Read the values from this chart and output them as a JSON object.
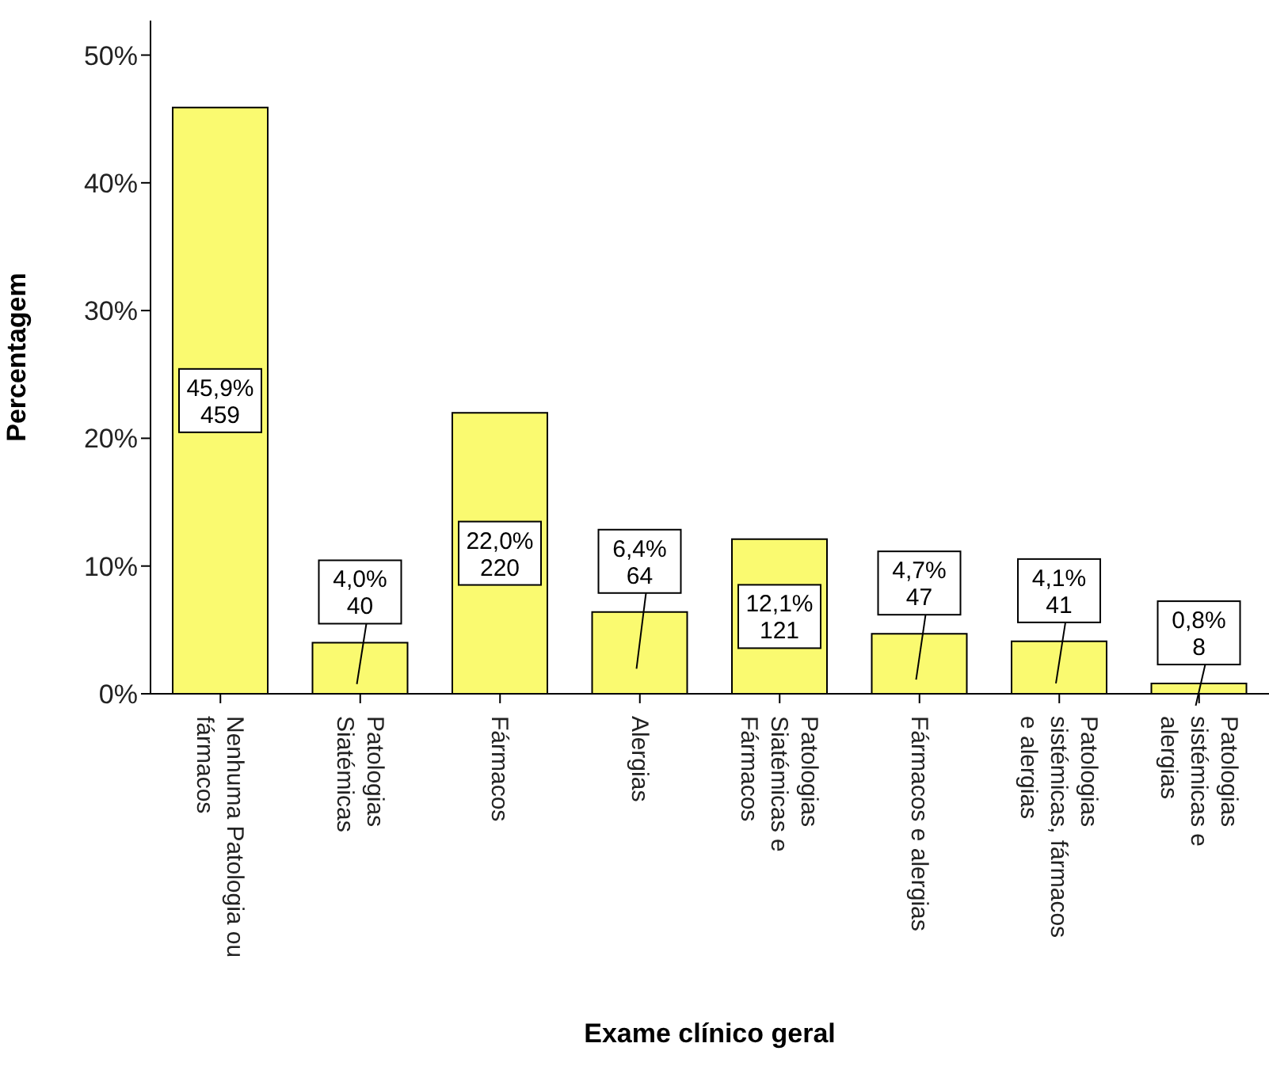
{
  "chart_data": {
    "type": "bar",
    "xlabel": "Exame clínico geral",
    "ylabel": "Percentagem",
    "categories": [
      "Nenhuma Patologia ou fármacos",
      "Patologias Siatémicas",
      "Fármacos",
      "Alergias",
      "Patologias Siatémicas e Fármacos",
      "Fármacos e alergias",
      "Patologias sistémicas, fármacos e alergias",
      "Patologias sistémicas e alergias"
    ],
    "values": [
      45.9,
      4.0,
      22.0,
      6.4,
      12.1,
      4.7,
      4.1,
      0.8
    ],
    "value_labels": [
      "45,9%\n459",
      "4,0%\n40",
      "22,0%\n220",
      "6,4%\n64",
      "12,1%\n121",
      "4,7%\n47",
      "4,1%\n41",
      "0,8%\n8"
    ],
    "color": "#fafa70",
    "ylim": [
      0,
      52.7
    ],
    "yticks": [
      {
        "value": 0,
        "label": "0%"
      },
      {
        "value": 10,
        "label": "10%"
      },
      {
        "value": 20,
        "label": "20%"
      },
      {
        "value": 30,
        "label": "30%"
      },
      {
        "value": 40,
        "label": "40%"
      },
      {
        "value": 50,
        "label": "50%"
      }
    ],
    "grid": false,
    "legend": false
  }
}
